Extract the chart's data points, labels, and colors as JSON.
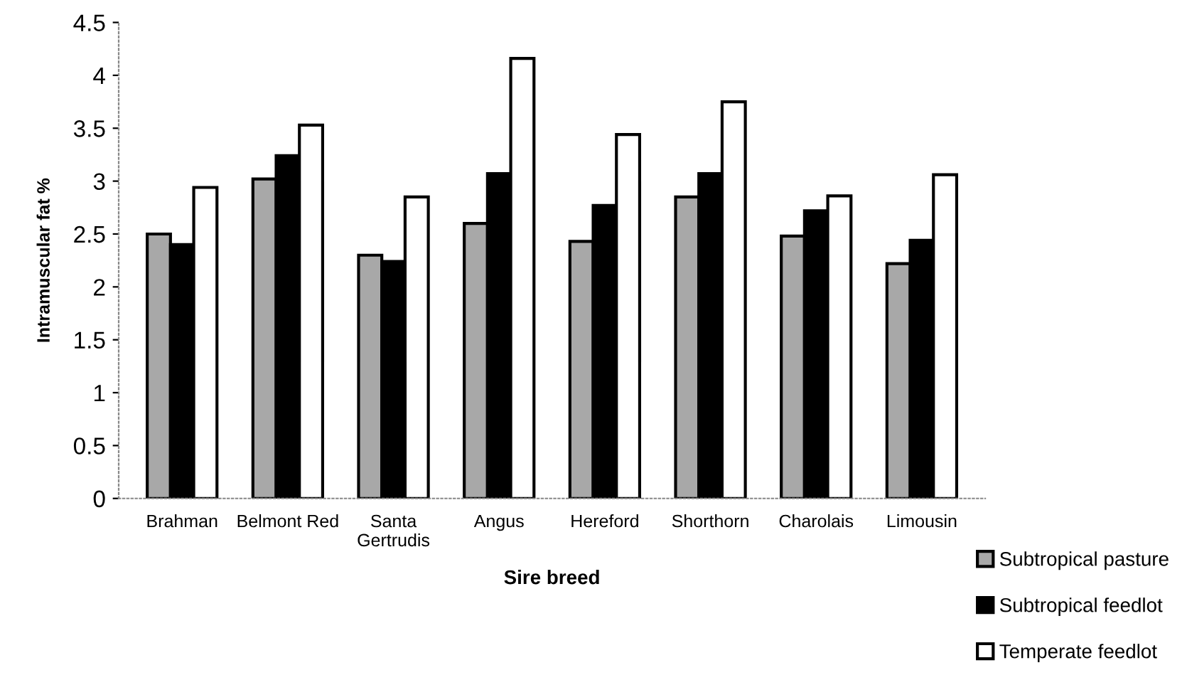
{
  "chart_data": {
    "type": "bar",
    "xlabel": "Sire breed",
    "ylabel": "Intramuscular fat %",
    "categories": [
      "Brahman",
      "Belmont Red",
      "Santa\nGertrudis",
      "Angus",
      "Hereford",
      "Shorthorn",
      "Charolais",
      "Limousin"
    ],
    "series": [
      {
        "name": "Subtropical pasture",
        "color": "#a8a8a8",
        "values": [
          2.5,
          3.02,
          2.3,
          2.6,
          2.43,
          2.85,
          2.48,
          2.22
        ]
      },
      {
        "name": "Subtropical feedlot",
        "color": "#000000",
        "values": [
          2.4,
          3.24,
          2.24,
          3.07,
          2.77,
          3.07,
          2.72,
          2.44
        ]
      },
      {
        "name": "Temperate feedlot",
        "color": "#ffffff",
        "values": [
          2.94,
          3.53,
          2.85,
          4.16,
          3.44,
          3.75,
          2.86,
          3.06
        ]
      }
    ],
    "ylim": [
      0,
      4.5
    ],
    "yticks": [
      0,
      0.5,
      1,
      1.5,
      2,
      2.5,
      3,
      3.5,
      4,
      4.5
    ],
    "grid": false,
    "legend": "bottom right"
  }
}
